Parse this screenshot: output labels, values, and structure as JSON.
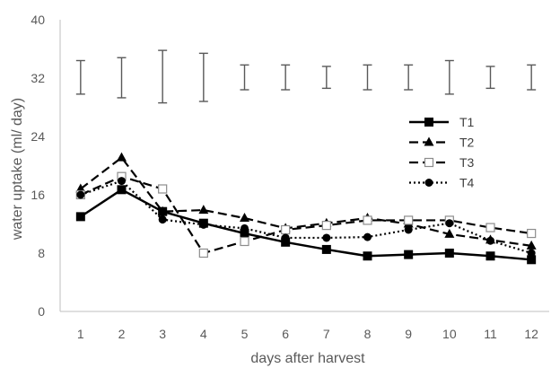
{
  "chart_data": {
    "type": "line",
    "x": [
      1,
      2,
      3,
      4,
      5,
      6,
      7,
      8,
      9,
      10,
      11,
      12
    ],
    "xlabel": "days after harvest",
    "ylabel": "water uptake (ml/ day)",
    "ylim": [
      0,
      40
    ],
    "yticks": [
      0,
      8,
      16,
      24,
      32,
      40
    ],
    "legend_position": "right",
    "grid": false,
    "series": [
      {
        "name": "T1",
        "marker": "square-filled",
        "line": "solid",
        "color": "#000000",
        "values": [
          13.0,
          16.7,
          13.7,
          12.1,
          10.7,
          9.5,
          8.5,
          7.6,
          7.8,
          8.0,
          7.6,
          7.1
        ]
      },
      {
        "name": "T2",
        "marker": "triangle-filled",
        "line": "dashed",
        "color": "#000000",
        "values": [
          16.8,
          21.1,
          13.7,
          13.9,
          12.8,
          11.4,
          12.1,
          12.8,
          12.0,
          10.6,
          9.8,
          9.0
        ]
      },
      {
        "name": "T3",
        "marker": "square-open",
        "line": "dashed",
        "color": "#000000",
        "values": [
          16.0,
          18.5,
          16.8,
          8.0,
          9.6,
          11.2,
          11.8,
          12.5,
          12.5,
          12.5,
          11.5,
          10.7
        ]
      },
      {
        "name": "T4",
        "marker": "circle-filled",
        "line": "dotted",
        "color": "#000000",
        "values": [
          16.0,
          17.9,
          12.6,
          11.9,
          11.4,
          10.1,
          10.1,
          10.2,
          11.2,
          12.1,
          9.7,
          8.0
        ]
      }
    ],
    "error_bars": {
      "color": "#595959",
      "values": [
        [
          29.8,
          34.4
        ],
        [
          29.3,
          34.8
        ],
        [
          28.6,
          35.8
        ],
        [
          28.8,
          35.4
        ],
        [
          30.4,
          33.8
        ],
        [
          30.4,
          33.8
        ],
        [
          30.6,
          33.6
        ],
        [
          30.4,
          33.8
        ],
        [
          30.4,
          33.8
        ],
        [
          29.8,
          34.4
        ],
        [
          30.6,
          33.6
        ],
        [
          30.4,
          33.8
        ]
      ]
    }
  }
}
